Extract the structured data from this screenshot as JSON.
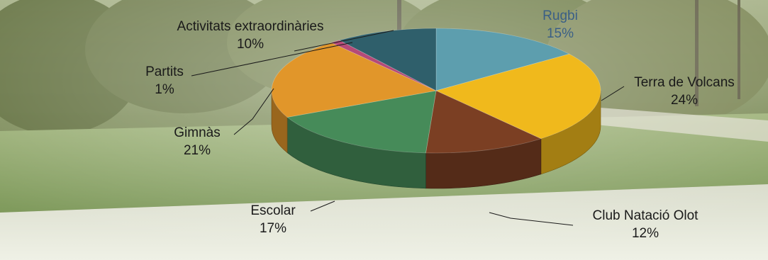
{
  "chart_data": {
    "type": "pie",
    "title": "",
    "style": "3d-exploded-pie-over-photo",
    "slices": [
      {
        "label": "Rugbi",
        "value": 15,
        "display": "15%",
        "color": "#5d9eae"
      },
      {
        "label": "Terra de Volcans",
        "value": 24,
        "display": "24%",
        "color": "#f0b91c"
      },
      {
        "label": "Club Natació Olot",
        "value": 12,
        "display": "12%",
        "color": "#7b3f23"
      },
      {
        "label": "Escolar",
        "value": 17,
        "display": "17%",
        "color": "#468b59"
      },
      {
        "label": "Gimnàs",
        "value": 21,
        "display": "21%",
        "color": "#e1962a"
      },
      {
        "label": "Partits",
        "value": 1,
        "display": "1%",
        "color": "#b44a78"
      },
      {
        "label": "Activitats extraordinàries",
        "value": 10,
        "display": "10%",
        "color": "#2f5f6b"
      }
    ]
  }
}
